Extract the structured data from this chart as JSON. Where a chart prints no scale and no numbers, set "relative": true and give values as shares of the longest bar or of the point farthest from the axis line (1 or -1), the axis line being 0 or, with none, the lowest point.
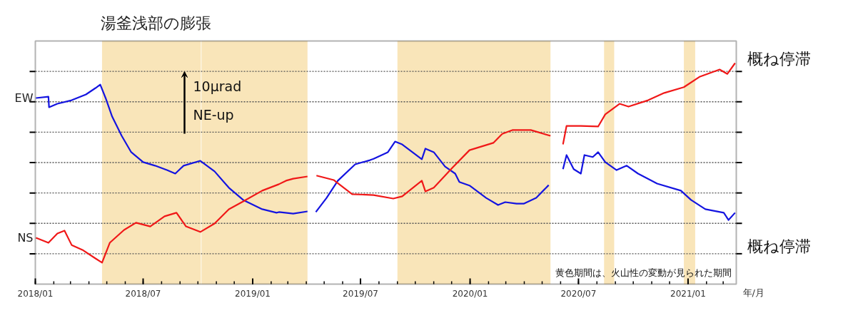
{
  "chart_data": {
    "type": "line",
    "title": "湯釜浅部の膨張",
    "xlabel": "年/月",
    "relative": true,
    "grid": "y",
    "xlim": [
      "2018-01-01",
      "2021-03-23"
    ],
    "xticks": [
      {
        "value": "2018-01",
        "label": "2018/01"
      },
      {
        "value": "2018-07",
        "label": "2018/07"
      },
      {
        "value": "2019-01",
        "label": "2019/01"
      },
      {
        "value": "2019-07",
        "label": "2019/07"
      },
      {
        "value": "2020-01",
        "label": "2020/01"
      },
      {
        "value": "2020-07",
        "label": "2020/07"
      },
      {
        "value": "2021-01",
        "label": "2021/01"
      }
    ],
    "series": [
      {
        "name": "EW",
        "color": "#1414e0",
        "x": [
          "2018-01-02",
          "2018-01-23",
          "2018-01-24",
          "2018-02-07",
          "2018-03-03",
          "2018-03-27",
          "2018-04-12",
          "2018-04-20",
          "2018-04-29",
          "2018-05-10",
          "2018-05-26",
          "2018-06-11",
          "2018-07-01",
          "2018-07-21",
          "2018-08-10",
          "2018-08-24",
          "2018-09-07",
          "2018-10-05",
          "2018-10-29",
          "2018-11-22",
          "2018-12-16",
          "2019-01-17",
          "2019-02-10",
          "2019-02-14",
          "2019-03-10",
          "2019-04-03",
          "2019-04-10",
          "2019-04-17",
          "2019-05-05",
          "2019-05-24",
          "2019-06-22",
          "2019-07-17",
          "2019-07-23",
          "2019-08-16",
          "2019-08-28",
          "2019-09-09",
          "2019-10-12",
          "2019-10-18",
          "2019-11-01",
          "2019-11-20",
          "2019-12-07",
          "2019-12-14",
          "2019-12-31",
          "2020-01-28",
          "2020-02-17",
          "2020-02-29",
          "2020-03-19",
          "2020-03-31",
          "2020-04-21",
          "2020-05-12",
          "2020-05-25",
          "2020-06-05",
          "2020-06-11",
          "2020-06-23",
          "2020-07-05",
          "2020-07-11",
          "2020-07-25",
          "2020-08-03",
          "2020-08-15",
          "2020-09-03",
          "2020-09-20",
          "2020-10-09",
          "2020-11-10",
          "2020-12-20",
          "2021-01-06",
          "2021-01-30",
          "2021-03-02",
          "2021-03-10",
          "2021-03-21"
        ],
        "values": [
          0.842,
          0.848,
          0.8,
          0.816,
          0.832,
          0.858,
          0.887,
          0.903,
          0.842,
          0.758,
          0.671,
          0.597,
          0.552,
          0.536,
          0.516,
          0.5,
          0.536,
          0.558,
          0.51,
          0.436,
          0.381,
          0.339,
          0.323,
          0.326,
          0.319,
          0.329,
          null,
          0.326,
          0.39,
          0.468,
          0.542,
          0.561,
          0.567,
          0.597,
          0.645,
          0.632,
          0.565,
          0.613,
          0.597,
          0.532,
          0.5,
          0.462,
          0.446,
          0.39,
          0.358,
          0.371,
          0.364,
          0.364,
          0.39,
          0.448,
          null,
          0.52,
          0.584,
          0.52,
          0.5,
          0.584,
          0.575,
          0.597,
          0.552,
          0.516,
          0.536,
          0.5,
          0.455,
          0.423,
          0.381,
          0.339,
          0.323,
          0.29,
          0.323
        ]
      },
      {
        "name": "NS",
        "color": "#f01818",
        "x": [
          "2018-01-02",
          "2018-01-23",
          "2018-02-07",
          "2018-02-19",
          "2018-03-03",
          "2018-03-21",
          "2018-04-12",
          "2018-04-23",
          "2018-05-06",
          "2018-05-30",
          "2018-06-19",
          "2018-07-13",
          "2018-08-06",
          "2018-08-26",
          "2018-09-11",
          "2018-10-05",
          "2018-10-29",
          "2018-11-22",
          "2018-12-16",
          "2019-01-17",
          "2019-02-14",
          "2019-02-26",
          "2019-03-10",
          "2019-04-03",
          "2019-04-10",
          "2019-04-18",
          "2019-05-17",
          "2019-06-17",
          "2019-07-23",
          "2019-08-25",
          "2019-09-09",
          "2019-10-12",
          "2019-10-18",
          "2019-11-01",
          "2019-12-02",
          "2019-12-31",
          "2020-02-09",
          "2020-02-24",
          "2020-03-12",
          "2020-04-12",
          "2020-05-15",
          "2020-05-25",
          "2020-06-05",
          "2020-06-11",
          "2020-07-05",
          "2020-08-03",
          "2020-08-15",
          "2020-09-08",
          "2020-09-23",
          "2020-10-26",
          "2020-11-22",
          "2020-12-25",
          "2021-01-21",
          "2021-02-23",
          "2021-03-08",
          "2021-03-21"
        ],
        "values": [
          0.21,
          0.187,
          0.229,
          0.242,
          0.177,
          0.155,
          0.116,
          0.097,
          0.187,
          0.245,
          0.278,
          0.261,
          0.307,
          0.323,
          0.261,
          0.236,
          0.274,
          0.339,
          0.374,
          0.423,
          0.452,
          0.468,
          0.477,
          0.487,
          null,
          0.491,
          0.471,
          0.407,
          0.403,
          0.387,
          0.397,
          0.468,
          0.419,
          0.436,
          0.526,
          0.606,
          0.639,
          0.68,
          0.697,
          0.697,
          0.671,
          null,
          0.632,
          0.716,
          0.716,
          0.713,
          0.768,
          0.816,
          0.803,
          0.832,
          0.865,
          0.891,
          0.939,
          0.971,
          0.951,
          1
        ]
      }
    ],
    "bands": [
      {
        "axis": "x",
        "from": "2018-04-23",
        "to": "2018-10-06",
        "color": "#f8dfa8"
      },
      {
        "axis": "x",
        "from": "2018-10-07",
        "to": "2019-04-03",
        "color": "#f8dfa8"
      },
      {
        "axis": "x",
        "from": "2019-09-01",
        "to": "2020-05-15",
        "color": "#f8dfa8"
      },
      {
        "axis": "x",
        "from": "2020-08-13",
        "to": "2020-08-30",
        "color": "#f8dfa8"
      },
      {
        "axis": "x",
        "from": "2020-12-25",
        "to": "2021-01-13",
        "color": "#f8dfa8"
      }
    ],
    "annotations": [
      "10μrad",
      "NE-up",
      "概ね停滞",
      "概ね停滞",
      "黄色期間は、火山性の変動が見られた期間"
    ]
  }
}
